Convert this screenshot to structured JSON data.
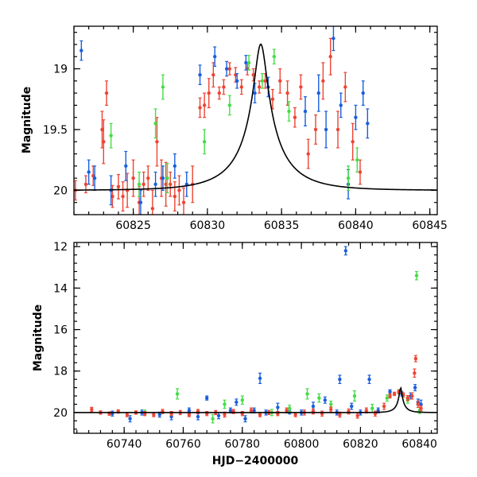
{
  "chart_data": [
    {
      "type": "scatter",
      "panel": "top",
      "xlabel": "",
      "ylabel": "Magnitude",
      "xlim": [
        60821,
        60845.5
      ],
      "ylim": [
        20.2,
        18.65
      ],
      "y_inverted": true,
      "xticks": [
        60825,
        60830,
        60835,
        60840,
        60845
      ],
      "yticks": [
        19,
        19.5,
        20
      ],
      "ytick_labels": [
        "19",
        "19.5",
        "20"
      ],
      "grid": false,
      "model": {
        "t0": 60833.6,
        "u0": 0.12,
        "tE": 3.3,
        "baseline": 20.0,
        "fs": 0.275
      },
      "series": [
        {
          "color": "#ee4433",
          "points": [
            [
              60821.1,
              20.0,
              0.08
            ],
            [
              60821.8,
              19.95,
              0.07
            ],
            [
              60822.3,
              19.88,
              0.08
            ],
            [
              60822.9,
              19.5,
              0.15
            ],
            [
              60823.0,
              19.6,
              0.18
            ],
            [
              60823.2,
              19.2,
              0.1
            ],
            [
              60823.6,
              20.05,
              0.09
            ],
            [
              60824.0,
              19.97,
              0.1
            ],
            [
              60824.3,
              20.05,
              0.12
            ],
            [
              60824.6,
              20.0,
              0.14
            ],
            [
              60825.0,
              19.9,
              0.15
            ],
            [
              60825.4,
              20.1,
              0.13
            ],
            [
              60825.7,
              19.95,
              0.1
            ],
            [
              60826.0,
              19.9,
              0.1
            ],
            [
              60826.3,
              20.15,
              0.15
            ],
            [
              60826.6,
              19.6,
              0.2
            ],
            [
              60826.9,
              19.9,
              0.15
            ],
            [
              60827.2,
              19.95,
              0.18
            ],
            [
              60827.5,
              19.95,
              0.1
            ],
            [
              60827.8,
              20.05,
              0.12
            ],
            [
              60828.1,
              20.0,
              0.12
            ],
            [
              60828.4,
              20.1,
              0.12
            ],
            [
              60829.0,
              19.95,
              0.15
            ],
            [
              60829.5,
              19.32,
              0.08
            ],
            [
              60829.8,
              19.3,
              0.1
            ],
            [
              60830.1,
              19.2,
              0.12
            ],
            [
              60830.4,
              19.05,
              0.1
            ],
            [
              60830.8,
              19.2,
              0.05
            ],
            [
              60831.1,
              19.15,
              0.06
            ],
            [
              60831.5,
              19.0,
              0.05
            ],
            [
              60831.9,
              19.05,
              0.06
            ],
            [
              60832.3,
              19.15,
              0.06
            ],
            [
              60832.7,
              19.0,
              0.05
            ],
            [
              60833.1,
              19.05,
              0.05
            ],
            [
              60833.5,
              19.15,
              0.05
            ],
            [
              60833.9,
              19.1,
              0.06
            ],
            [
              60834.4,
              19.25,
              0.08
            ],
            [
              60834.9,
              19.1,
              0.1
            ],
            [
              60835.4,
              19.2,
              0.1
            ],
            [
              60835.9,
              19.4,
              0.08
            ],
            [
              60836.3,
              19.15,
              0.1
            ],
            [
              60836.8,
              19.7,
              0.12
            ],
            [
              60837.3,
              19.5,
              0.12
            ],
            [
              60837.8,
              19.1,
              0.15
            ],
            [
              60838.3,
              18.9,
              0.15
            ],
            [
              60838.8,
              19.5,
              0.15
            ],
            [
              60839.3,
              19.15,
              0.12
            ],
            [
              60839.8,
              19.6,
              0.15
            ],
            [
              60840.3,
              19.85,
              0.1
            ]
          ]
        },
        {
          "color": "#1a5fdd",
          "points": [
            [
              60821.5,
              18.85,
              0.08
            ],
            [
              60822.0,
              19.85,
              0.1
            ],
            [
              60822.4,
              19.9,
              0.1
            ],
            [
              60823.5,
              20.0,
              0.12
            ],
            [
              60824.5,
              19.8,
              0.12
            ],
            [
              60825.5,
              20.1,
              0.1
            ],
            [
              60826.5,
              19.95,
              0.1
            ],
            [
              60827.0,
              19.9,
              0.1
            ],
            [
              60827.8,
              19.8,
              0.1
            ],
            [
              60828.6,
              19.95,
              0.1
            ],
            [
              60829.5,
              19.05,
              0.08
            ],
            [
              60830.5,
              18.9,
              0.08
            ],
            [
              60831.3,
              19.0,
              0.06
            ],
            [
              60832.0,
              19.1,
              0.06
            ],
            [
              60832.6,
              18.95,
              0.06
            ],
            [
              60833.2,
              19.2,
              0.08
            ],
            [
              60834.1,
              19.15,
              0.08
            ],
            [
              60836.6,
              19.35,
              0.12
            ],
            [
              60837.5,
              19.2,
              0.15
            ],
            [
              60838.0,
              19.5,
              0.15
            ],
            [
              60838.5,
              18.75,
              0.1
            ],
            [
              60839.0,
              19.3,
              0.1
            ],
            [
              60839.5,
              19.95,
              0.12
            ],
            [
              60840.0,
              19.4,
              0.1
            ],
            [
              60840.5,
              19.2,
              0.1
            ],
            [
              60840.8,
              19.45,
              0.12
            ]
          ]
        },
        {
          "color": "#44dd44",
          "points": [
            [
              60823.5,
              19.55,
              0.1
            ],
            [
              60825.4,
              19.95,
              0.1
            ],
            [
              60826.5,
              19.45,
              0.12
            ],
            [
              60827.0,
              19.15,
              0.1
            ],
            [
              60827.3,
              19.9,
              0.12
            ],
            [
              60829.8,
              19.6,
              0.1
            ],
            [
              60831.5,
              19.3,
              0.08
            ],
            [
              60832.8,
              18.95,
              0.06
            ],
            [
              60833.7,
              19.1,
              0.06
            ],
            [
              60834.5,
              18.9,
              0.06
            ],
            [
              60835.5,
              19.35,
              0.08
            ],
            [
              60839.5,
              19.9,
              0.1
            ],
            [
              60840.1,
              19.75,
              0.1
            ]
          ]
        }
      ]
    },
    {
      "type": "scatter",
      "panel": "bottom",
      "xlabel": "HJD−2400000",
      "ylabel": "Magnitude",
      "xlim": [
        60723,
        60846
      ],
      "ylim": [
        21.0,
        11.8
      ],
      "y_inverted": true,
      "xticks": [
        60740,
        60760,
        60780,
        60800,
        60820,
        60840
      ],
      "yticks": [
        12,
        14,
        16,
        18,
        20
      ],
      "ytick_labels": [
        "12",
        "14",
        "16",
        "18",
        "20"
      ],
      "grid": false,
      "model": {
        "t0": 60833.6,
        "u0": 0.12,
        "tE": 3.3,
        "baseline": 20.0,
        "fs": 0.275
      },
      "series": [
        {
          "color": "#1a5fdd",
          "points": [
            [
              60736.0,
              20.05,
              0.12
            ],
            [
              60742.0,
              20.3,
              0.15
            ],
            [
              60746.0,
              20.0,
              0.12
            ],
            [
              60752.0,
              20.1,
              0.12
            ],
            [
              60756.0,
              20.2,
              0.15
            ],
            [
              60762.0,
              19.9,
              0.12
            ],
            [
              60765.0,
              20.2,
              0.15
            ],
            [
              60768.0,
              19.3,
              0.1
            ],
            [
              60772.0,
              20.15,
              0.15
            ],
            [
              60776.0,
              19.9,
              0.12
            ],
            [
              60778.0,
              19.5,
              0.15
            ],
            [
              60781.0,
              20.3,
              0.15
            ],
            [
              60784.0,
              19.9,
              0.12
            ],
            [
              60786.0,
              18.35,
              0.25
            ],
            [
              60788.0,
              20.0,
              0.12
            ],
            [
              60792.0,
              19.75,
              0.2
            ],
            [
              60796.0,
              19.95,
              0.12
            ],
            [
              60800.0,
              20.0,
              0.12
            ],
            [
              60804.0,
              19.7,
              0.2
            ],
            [
              60808.0,
              19.4,
              0.15
            ],
            [
              60812.0,
              20.0,
              0.12
            ],
            [
              60813.0,
              18.4,
              0.2
            ],
            [
              60815.0,
              12.2,
              0.2
            ],
            [
              60817.0,
              19.7,
              0.15
            ],
            [
              60820.0,
              20.0,
              0.12
            ],
            [
              60823.0,
              18.4,
              0.2
            ],
            [
              60826.0,
              19.9,
              0.12
            ],
            [
              60830.0,
              19.0,
              0.1
            ],
            [
              60834.0,
              19.1,
              0.1
            ],
            [
              60837.0,
              19.2,
              0.15
            ],
            [
              60838.5,
              18.8,
              0.15
            ],
            [
              60839.5,
              19.5,
              0.15
            ],
            [
              60840.5,
              19.6,
              0.2
            ]
          ]
        },
        {
          "color": "#44dd44",
          "points": [
            [
              60747.0,
              20.0,
              0.12
            ],
            [
              60758.0,
              19.1,
              0.25
            ],
            [
              60770.0,
              20.3,
              0.2
            ],
            [
              60774.0,
              19.6,
              0.2
            ],
            [
              60780.0,
              19.4,
              0.2
            ],
            [
              60790.0,
              20.0,
              0.15
            ],
            [
              60796.0,
              19.8,
              0.15
            ],
            [
              60802.0,
              19.1,
              0.25
            ],
            [
              60806.0,
              19.3,
              0.2
            ],
            [
              60810.0,
              19.6,
              0.15
            ],
            [
              60818.0,
              19.2,
              0.25
            ],
            [
              60824.0,
              19.8,
              0.2
            ],
            [
              60829.0,
              19.3,
              0.15
            ],
            [
              60833.0,
              19.0,
              0.1
            ],
            [
              60836.0,
              19.4,
              0.15
            ],
            [
              60839.0,
              13.4,
              0.2
            ],
            [
              60840.0,
              19.9,
              0.15
            ]
          ]
        },
        {
          "color": "#ee4433",
          "points": [
            [
              60729.0,
              19.85,
              0.1
            ],
            [
              60732.0,
              20.0,
              0.08
            ],
            [
              60735.0,
              20.05,
              0.08
            ],
            [
              60738.0,
              19.95,
              0.08
            ],
            [
              60741.0,
              20.1,
              0.1
            ],
            [
              60744.0,
              20.0,
              0.08
            ],
            [
              60747.0,
              20.05,
              0.1
            ],
            [
              60750.0,
              20.1,
              0.1
            ],
            [
              60753.0,
              19.95,
              0.1
            ],
            [
              60756.0,
              20.05,
              0.1
            ],
            [
              60759.0,
              20.0,
              0.1
            ],
            [
              60762.0,
              20.1,
              0.1
            ],
            [
              60765.0,
              19.95,
              0.1
            ],
            [
              60768.0,
              20.05,
              0.1
            ],
            [
              60771.0,
              20.0,
              0.1
            ],
            [
              60774.0,
              20.1,
              0.12
            ],
            [
              60777.0,
              19.95,
              0.1
            ],
            [
              60780.0,
              20.05,
              0.1
            ],
            [
              60783.0,
              19.9,
              0.12
            ],
            [
              60786.0,
              20.1,
              0.1
            ],
            [
              60789.0,
              20.0,
              0.1
            ],
            [
              60792.0,
              20.05,
              0.1
            ],
            [
              60795.0,
              19.9,
              0.12
            ],
            [
              60798.0,
              20.1,
              0.1
            ],
            [
              60801.0,
              20.0,
              0.12
            ],
            [
              60804.0,
              19.95,
              0.12
            ],
            [
              60807.0,
              20.05,
              0.12
            ],
            [
              60810.0,
              19.85,
              0.12
            ],
            [
              60813.0,
              20.1,
              0.12
            ],
            [
              60816.0,
              19.95,
              0.12
            ],
            [
              60819.0,
              20.15,
              0.12
            ],
            [
              60822.0,
              19.9,
              0.12
            ],
            [
              60825.0,
              20.05,
              0.12
            ],
            [
              60828.0,
              19.7,
              0.15
            ],
            [
              60830.0,
              19.2,
              0.1
            ],
            [
              60831.5,
              19.1,
              0.08
            ],
            [
              60833.0,
              19.0,
              0.08
            ],
            [
              60834.5,
              19.15,
              0.1
            ],
            [
              60836.0,
              19.3,
              0.12
            ],
            [
              60837.5,
              19.2,
              0.15
            ],
            [
              60838.3,
              18.1,
              0.2
            ],
            [
              60838.7,
              17.4,
              0.15
            ],
            [
              60839.5,
              19.6,
              0.15
            ],
            [
              60840.5,
              19.8,
              0.12
            ]
          ]
        }
      ]
    }
  ]
}
